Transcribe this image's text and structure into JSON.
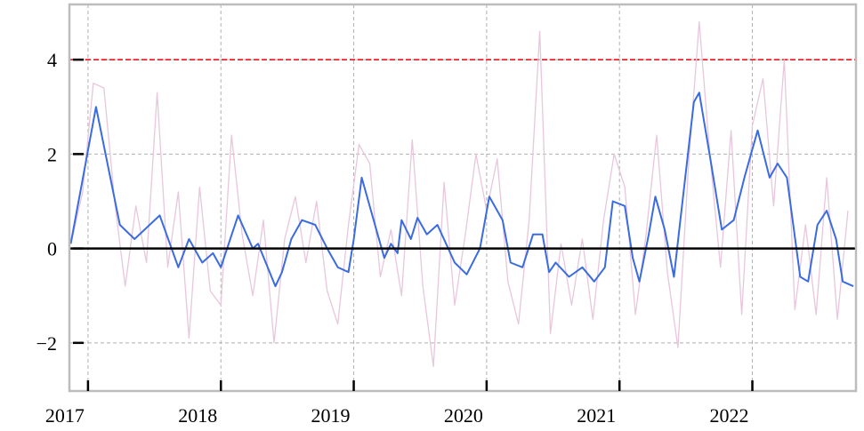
{
  "chart_data": {
    "type": "line",
    "xlim": [
      2016.86,
      2022.78
    ],
    "ylim": [
      -3.02,
      5.17
    ],
    "xticks": [
      2017,
      2018,
      2019,
      2020,
      2021,
      2022
    ],
    "yticks": [
      {
        "value": -2,
        "label": "−2"
      },
      0,
      2,
      4
    ],
    "grid": true,
    "hlines": [
      {
        "value": 4,
        "color": "#e8000b",
        "dashed": true
      },
      {
        "value": 0,
        "color": "#000000",
        "dashed": false
      }
    ],
    "series": [
      {
        "color": "#e8c6dc",
        "x": [
          2016.88,
          2016.96,
          2017.04,
          2017.12,
          2017.2,
          2017.28,
          2017.36,
          2017.44,
          2017.52,
          2017.6,
          2017.68,
          2017.76,
          2017.84,
          2017.92,
          2018.0,
          2018.08,
          2018.16,
          2018.24,
          2018.32,
          2018.4,
          2018.48,
          2018.56,
          2018.64,
          2018.72,
          2018.8,
          2018.88,
          2018.96,
          2019.04,
          2019.12,
          2019.2,
          2019.28,
          2019.36,
          2019.44,
          2019.52,
          2019.6,
          2019.68,
          2019.76,
          2019.84,
          2019.92,
          2020.0,
          2020.08,
          2020.16,
          2020.24,
          2020.32,
          2020.4,
          2020.48,
          2020.56,
          2020.64,
          2020.72,
          2020.8,
          2020.88,
          2020.96,
          2021.04,
          2021.12,
          2021.2,
          2021.28,
          2021.36,
          2021.44,
          2021.52,
          2021.6,
          2021.68,
          2021.76,
          2021.84,
          2021.92,
          2022.0,
          2022.08,
          2022.16,
          2022.24,
          2022.32,
          2022.4,
          2022.48,
          2022.56,
          2022.64,
          2022.72
        ],
        "values": [
          0.2,
          1.2,
          3.5,
          3.4,
          1.0,
          -0.8,
          0.9,
          -0.3,
          3.3,
          -0.4,
          1.2,
          -1.9,
          1.3,
          -0.9,
          -1.2,
          2.4,
          0.3,
          -1.0,
          0.6,
          -2.0,
          0.2,
          1.1,
          -0.3,
          1.0,
          -0.9,
          -1.6,
          0.5,
          2.2,
          1.8,
          -0.6,
          0.4,
          -1.0,
          2.3,
          -0.8,
          -2.5,
          1.4,
          -1.2,
          0.3,
          2.0,
          0.8,
          1.9,
          -0.7,
          -1.6,
          0.6,
          4.6,
          -1.8,
          0.1,
          -1.2,
          0.2,
          -1.5,
          0.6,
          2.0,
          1.3,
          -1.4,
          0.3,
          2.4,
          -0.5,
          -2.1,
          1.8,
          4.8,
          2.0,
          -0.4,
          2.5,
          -1.4,
          2.6,
          3.6,
          0.9,
          4.0,
          -1.3,
          0.5,
          -1.4,
          1.5,
          -1.5,
          0.8
        ]
      },
      {
        "color": "#3b6be0",
        "x": [
          2016.87,
          2017.06,
          2017.24,
          2017.35,
          2017.54,
          2017.68,
          2017.76,
          2017.86,
          2017.94,
          2018.0,
          2018.13,
          2018.24,
          2018.28,
          2018.41,
          2018.46,
          2018.53,
          2018.61,
          2018.71,
          2018.8,
          2018.88,
          2018.96,
          2019.0,
          2019.06,
          2019.18,
          2019.23,
          2019.28,
          2019.33,
          2019.36,
          2019.43,
          2019.48,
          2019.55,
          2019.63,
          2019.76,
          2019.85,
          2019.95,
          2020.02,
          2020.12,
          2020.18,
          2020.27,
          2020.35,
          2020.42,
          2020.47,
          2020.52,
          2020.62,
          2020.72,
          2020.81,
          2020.89,
          2020.95,
          2021.04,
          2021.1,
          2021.15,
          2021.22,
          2021.27,
          2021.34,
          2021.41,
          2021.45,
          2021.56,
          2021.6,
          2021.69,
          2021.77,
          2021.86,
          2021.94,
          2021.99,
          2022.04,
          2022.13,
          2022.19,
          2022.26,
          2022.36,
          2022.42,
          2022.49,
          2022.56,
          2022.63,
          2022.68,
          2022.76
        ],
        "values": [
          0.1,
          3.0,
          0.5,
          0.2,
          0.7,
          -0.4,
          0.2,
          -0.3,
          -0.1,
          -0.4,
          0.7,
          0.0,
          0.1,
          -0.8,
          -0.5,
          0.2,
          0.6,
          0.5,
          0.0,
          -0.4,
          -0.5,
          0.2,
          1.5,
          0.3,
          -0.2,
          0.1,
          -0.1,
          0.6,
          0.2,
          0.65,
          0.3,
          0.5,
          -0.3,
          -0.55,
          0.0,
          1.1,
          0.6,
          -0.3,
          -0.4,
          0.3,
          0.3,
          -0.5,
          -0.3,
          -0.6,
          -0.4,
          -0.7,
          -0.4,
          1.0,
          0.9,
          -0.2,
          -0.7,
          0.3,
          1.1,
          0.4,
          -0.6,
          0.4,
          3.1,
          3.3,
          1.8,
          0.4,
          0.6,
          1.5,
          2.0,
          2.5,
          1.5,
          1.8,
          1.5,
          -0.6,
          -0.7,
          0.5,
          0.8,
          0.2,
          -0.7,
          -0.8
        ]
      }
    ]
  }
}
